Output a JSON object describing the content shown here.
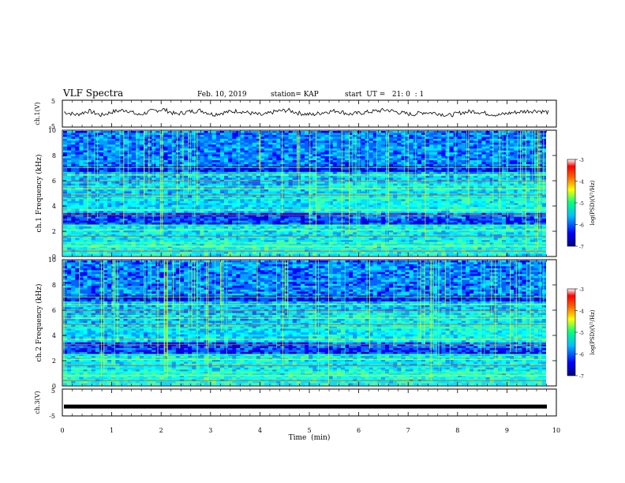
{
  "header": {
    "title": "VLF Spectra",
    "date": "Feb. 10, 2019",
    "station": "station= KAP",
    "start": "start  UT =   21: 0  : 1"
  },
  "chart_data": [
    {
      "type": "line",
      "panel": "ch1-waveform",
      "ylabel": "ch.1(V)",
      "ylim": [
        -5,
        5
      ],
      "yticks": [
        "5",
        "-5"
      ],
      "xlim": [
        0,
        10
      ],
      "series": [
        {
          "values": [
            0.6,
            -0.4,
            1.0,
            -0.6,
            0.8,
            1.4,
            -0.5,
            0.9,
            1.6,
            -0.2,
            0.7,
            1.2,
            -0.3,
            0.5,
            1.0,
            0.2,
            -0.6,
            0.8,
            1.3,
            0.1,
            -0.4,
            0.6,
            1.1,
            -0.2,
            0.3,
            0.9,
            1.4,
            0.4,
            -0.3,
            0.5,
            0.2,
            -0.7,
            0.4,
            0.9,
            0.1,
            -0.5,
            0.3,
            0.8,
            1.1,
            0.5
          ]
        }
      ]
    },
    {
      "type": "heatmap",
      "panel": "ch1-spectrogram",
      "ylabel": "ch.1 Frequency (kHz)",
      "ylim": [
        0,
        10
      ],
      "yticks": [
        "0",
        "2",
        "4",
        "6",
        "8",
        "10"
      ],
      "xlim": [
        0,
        10
      ],
      "colorbar": {
        "label": "log(PSD)(V²/Hz)",
        "range": [
          -7,
          -3
        ],
        "ticks": [
          "-3",
          "-4",
          "-5",
          "-6",
          "-7"
        ]
      }
    },
    {
      "type": "heatmap",
      "panel": "ch2-spectrogram",
      "ylabel": "ch.2 Frequency (kHz)",
      "ylim": [
        0,
        10
      ],
      "yticks": [
        "0",
        "2",
        "4",
        "6",
        "8",
        "10"
      ],
      "xlim": [
        0,
        10
      ],
      "colorbar": {
        "label": "log(PSD)(V²/Hz)",
        "range": [
          -7,
          -3
        ],
        "ticks": [
          "-3",
          "-4",
          "-5",
          "-6",
          "-7"
        ]
      }
    },
    {
      "type": "line",
      "panel": "ch3-waveform",
      "ylabel": "ch.3(V)",
      "ylim": [
        -5,
        5
      ],
      "yticks": [
        "5",
        "-5"
      ],
      "xlim": [
        0,
        10
      ],
      "series": [
        {
          "values": [
            -1.5,
            -1.5
          ]
        }
      ]
    }
  ],
  "xaxis": {
    "label": "Time  (min)",
    "ticks": [
      "0",
      "1",
      "2",
      "3",
      "4",
      "5",
      "6",
      "7",
      "8",
      "9",
      "10"
    ]
  },
  "colors": {
    "spectral_scale": [
      "#00007f",
      "#0000ff",
      "#00a0ff",
      "#00ffff",
      "#00ff80",
      "#ffff00",
      "#ff8000",
      "#ff0000",
      "#ffffff"
    ]
  }
}
